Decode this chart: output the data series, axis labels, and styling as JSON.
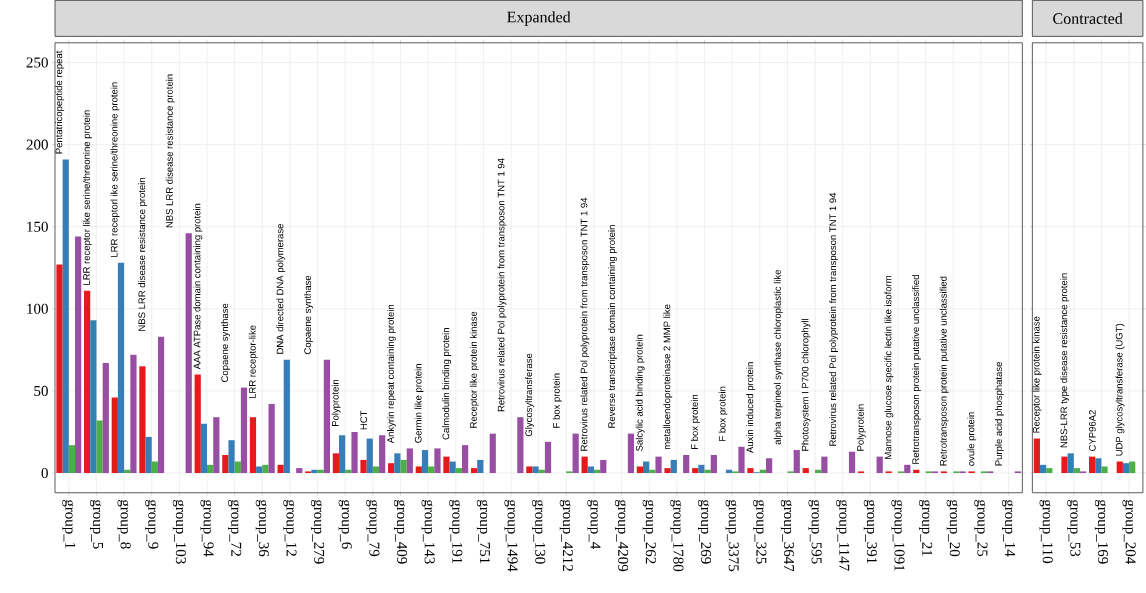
{
  "chart_data": [
    {
      "type": "bar",
      "title": "Expanded",
      "categories": [
        "group_1",
        "group_5",
        "group_8",
        "group_9",
        "group_103",
        "group_94",
        "group_72",
        "group_36",
        "group_12",
        "group_279",
        "group_6",
        "group_79",
        "group_409",
        "group_143",
        "group_191",
        "group_751",
        "group_1494",
        "group_130",
        "group_4212",
        "group_4",
        "group_4209",
        "group_262",
        "group_1780",
        "group_269",
        "group_3375",
        "group_325",
        "group_3647",
        "group_595",
        "group_1147",
        "group_391",
        "group_1091",
        "group_21",
        "group_20",
        "group_25",
        "group_14"
      ],
      "series": [
        {
          "color": "#e41a1c",
          "values": [
            127,
            111,
            46,
            65,
            null,
            60,
            11,
            34,
            5,
            1,
            12,
            8,
            6,
            4,
            10,
            3,
            null,
            4,
            null,
            10,
            null,
            4,
            3,
            3,
            null,
            3,
            null,
            3,
            null,
            1,
            1,
            2,
            1,
            1,
            null
          ]
        },
        {
          "color": "#377eb8",
          "values": [
            191,
            93,
            128,
            22,
            null,
            30,
            20,
            4,
            69,
            2,
            23,
            21,
            12,
            14,
            7,
            8,
            null,
            4,
            null,
            4,
            null,
            7,
            8,
            5,
            2,
            0.5,
            null,
            null,
            null,
            null,
            null,
            null,
            null,
            null,
            null
          ]
        },
        {
          "color": "#4daf4a",
          "values": [
            17,
            32,
            2,
            7,
            null,
            5,
            7,
            5,
            null,
            2,
            2,
            4,
            8,
            4,
            3,
            null,
            null,
            2,
            1,
            2,
            null,
            2,
            null,
            2,
            1,
            2,
            1,
            2,
            null,
            null,
            1,
            1,
            1,
            1,
            null
          ]
        },
        {
          "color": "#984ea3",
          "values": [
            144,
            67,
            72,
            83,
            146,
            34,
            52,
            42,
            3,
            69,
            25,
            23,
            15,
            15,
            17,
            24,
            34,
            19,
            24,
            8,
            24,
            10,
            11,
            11,
            16,
            9,
            14,
            10,
            13,
            10,
            5,
            1,
            1,
            1,
            1
          ]
        }
      ],
      "ylim": [
        -12,
        262
      ],
      "yticks": [
        0,
        50,
        100,
        150,
        200,
        250
      ],
      "grid": true,
      "annotations": [
        "Pentatricopeptide repeat",
        "LRR receptor like serine/threonine protein",
        "LRR receptorl ike serine/threonine protein",
        "NBS LRR disease resistance protein",
        "NBS LRR disease resistance protein",
        "AAA ATPase domain containing protein",
        "Copaene synthase",
        "LRR receptor-like",
        "DNA directed DNA polymerase",
        "Copaene synthase",
        "Polyprotein",
        "HCT",
        "Ankyrin repeat containing protein",
        "Germin like protein",
        "Calmodulin binding protein",
        "Receptor like protein kinase",
        "Retrovirus related Pol polyprotein from transposon TNT 1 94",
        "Glycosyltransferase",
        "F box protein",
        "Retrovirus related Pol polyprotein from transposon TNT 1 94",
        "Reverse transcriptase domain containing protein",
        "Salcylic acid binding protein",
        "metalloendoproteinase 2 MMP like",
        "F box protein",
        "F box protein",
        "Auxin induced protein",
        "alpha terpineol synthase chloroplastic like",
        "Photosystem I P700 chlorophyll",
        "Retrovirus related Pol polyprotein from transposon TNT 1 94",
        "Polyprotein",
        "Mannose glucose specific lectin like isoform",
        "Retrotransposon protein putative unclassified",
        "Retrotransposon protein putative unclassified",
        "ovule protein",
        "Purple acid phosphatase"
      ]
    },
    {
      "type": "bar",
      "title": "Contracted",
      "categories": [
        "group_110",
        "group_53",
        "group_169",
        "group_204"
      ],
      "series": [
        {
          "color": "#e41a1c",
          "values": [
            21,
            10,
            10,
            7
          ]
        },
        {
          "color": "#377eb8",
          "values": [
            5,
            12,
            9,
            6
          ]
        },
        {
          "color": "#4daf4a",
          "values": [
            3,
            3,
            4,
            7
          ]
        },
        {
          "color": "#984ea3",
          "values": [
            null,
            1,
            null,
            null
          ]
        }
      ],
      "ylim": [
        -12,
        262
      ],
      "yticks": [
        0,
        50,
        100,
        150,
        200,
        250
      ],
      "grid": true,
      "tick_labels": "x",
      "annotations": [
        "Receptor like protein kinase",
        "NBS-LRR type disease resistance protein",
        "CYP96A2",
        "UDP glycosyltransferase (UGT)"
      ]
    }
  ]
}
